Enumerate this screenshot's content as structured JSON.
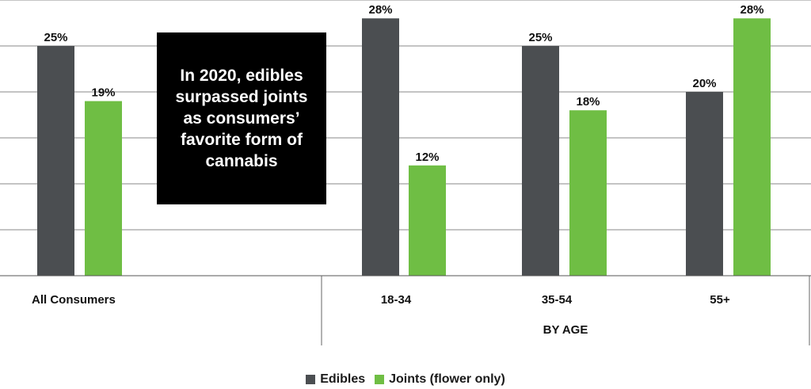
{
  "chart_data": {
    "type": "bar",
    "categories": [
      "All Consumers",
      "18-34",
      "35-54",
      "55+"
    ],
    "group_label": "BY AGE",
    "series": [
      {
        "name": "Edibles",
        "values": [
          25,
          28,
          25,
          20
        ],
        "labels": [
          "25%",
          "28%",
          "25%",
          "20%"
        ],
        "color": "#4b4e51"
      },
      {
        "name": "Joints (flower only)",
        "values": [
          19,
          12,
          18,
          28
        ],
        "labels": [
          "19%",
          "12%",
          "18%",
          "28%"
        ],
        "color": "#6fbe44"
      }
    ],
    "ylim": [
      0,
      30
    ],
    "grid": true,
    "legend_position": "bottom"
  },
  "callout_text": "In 2020, edibles surpassed joints as consumers’ favorite form of cannabis"
}
